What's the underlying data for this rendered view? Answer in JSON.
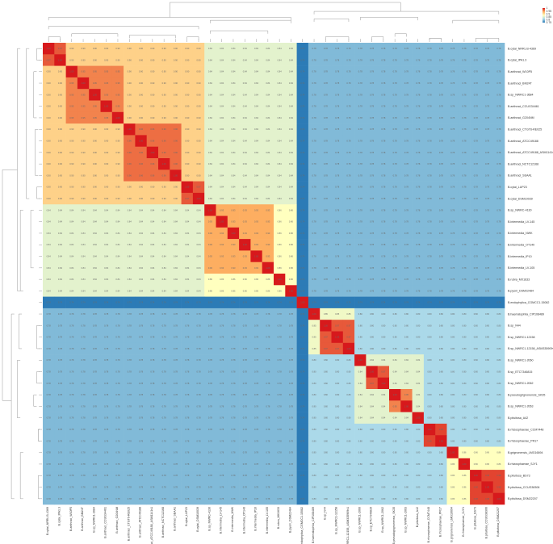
{
  "chart_data": {
    "type": "heatmap",
    "title": "",
    "labels": [
      "B.cytai_NRRL B-4369",
      "B.cytai_IPA1.3",
      "B.anthraci_W10P5",
      "B.anthraci_BM24T",
      "B.sp_NWRC1-3684",
      "B.anthraci_CCUG34461",
      "B.anthraci_G204NM",
      "B.anthraci_CTGT6-RE025",
      "B.anthraci_ATCC49188",
      "B.anthraci_ATCC49188_ASM1141v1",
      "B.anthraci_NCTC12168",
      "B.anthraci_SEAA1",
      "B.cytai_LUP23",
      "B.cytai_DSM10039",
      "B.sp_NWRC-4130",
      "B.intermedia_LV-145",
      "B.intermedia_NWK",
      "B.intermedia_OT140",
      "B.intermedia_IP10",
      "B.intermedia_LV-105",
      "B.rubra_MX1633",
      "B.pyoni_DSM22484",
      "B.endophytica_CGMCC1.15082",
      "B.haematophila_CIP108489",
      "B.sp_N44",
      "B.sp_NWRC1-12158",
      "B.sp_NWRC1-12158_ASM335909v1",
      "B.sp_NWRC1-2060",
      "B.sp_ETC7346815",
      "B.sp_NWRC1-2062",
      "B.pseudogrignonensis_SK35",
      "B.sp_NWRC1-2063",
      "B.pituitosa_A42",
      "B.rhizosphaerae_CCM7448",
      "B.rhizosphaerae_PR17",
      "B.grignonensis_LMG16694",
      "B.rhizosphaerae_SJY1",
      "B.pituitosa_BS73",
      "B.pituitosa_CCUG38306",
      "B.pituitosa_DSM22207"
    ],
    "groups": [
      {
        "start": 0,
        "end": 1,
        "within": 0.97
      },
      {
        "start": 2,
        "end": 6,
        "within": 0.95
      },
      {
        "start": 7,
        "end": 11,
        "within": 0.96
      },
      {
        "start": 12,
        "end": 13,
        "within": 0.97
      },
      {
        "start": 14,
        "end": 19,
        "within": 0.93
      },
      {
        "start": 20,
        "end": 20,
        "within": 1.0
      },
      {
        "start": 21,
        "end": 21,
        "within": 1.0
      },
      {
        "start": 22,
        "end": 22,
        "within": 1.0
      },
      {
        "start": 23,
        "end": 23,
        "within": 1.0
      },
      {
        "start": 24,
        "end": 26,
        "within": 0.97
      },
      {
        "start": 27,
        "end": 27,
        "within": 1.0
      },
      {
        "start": 28,
        "end": 29,
        "within": 0.97
      },
      {
        "start": 30,
        "end": 31,
        "within": 0.95
      },
      {
        "start": 32,
        "end": 32,
        "within": 1.0
      },
      {
        "start": 33,
        "end": 34,
        "within": 0.98
      },
      {
        "start": 35,
        "end": 35,
        "within": 1.0
      },
      {
        "start": 36,
        "end": 36,
        "within": 1.0
      },
      {
        "start": 37,
        "end": 39,
        "within": 0.98
      }
    ],
    "clusters": [
      {
        "start": 0,
        "end": 13,
        "within": 0.9
      },
      {
        "start": 14,
        "end": 21,
        "within": 0.86
      },
      {
        "start": 22,
        "end": 22,
        "within": 1.0
      },
      {
        "start": 23,
        "end": 26,
        "within": 0.85
      },
      {
        "start": 27,
        "end": 32,
        "within": 0.84
      },
      {
        "start": 33,
        "end": 34,
        "within": 0.98
      },
      {
        "start": 35,
        "end": 39,
        "within": 0.86
      }
    ],
    "superclusters": [
      {
        "start": 0,
        "end": 21,
        "between": 0.84
      },
      {
        "start": 22,
        "end": 22,
        "between": 0.77
      },
      {
        "start": 23,
        "end": 39,
        "between": 0.8
      }
    ],
    "between_superclusters": 0.78,
    "outlier_index": 22,
    "outlier_value": 0.74,
    "value_range": [
      0.74,
      1.0
    ],
    "legend": {
      "position": "top-right",
      "ticks": [
        "1",
        "0.95",
        "0.9",
        "0.85",
        "0.8",
        "0.75"
      ],
      "colors": [
        "#d7191c",
        "#fdae61",
        "#ffffbf",
        "#abd9e9",
        "#2c7bb6"
      ]
    },
    "colors": {
      "high": "#d7191c",
      "mid_high": "#fdae61",
      "mid": "#ffffbf",
      "mid_low": "#abd9e9",
      "low": "#2c7bb6"
    },
    "dendrograms": "row-top-and-left",
    "cell_labels": true
  }
}
